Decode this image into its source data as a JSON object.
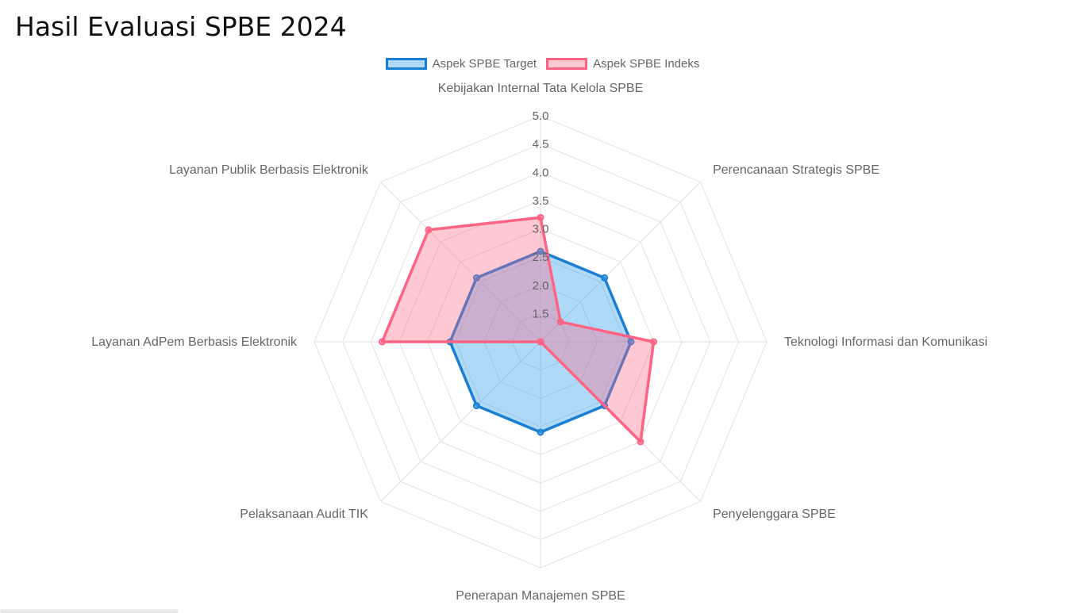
{
  "page": {
    "title": "Hasil Evaluasi SPBE 2024"
  },
  "colors": {
    "target_stroke": "#1a7fd4",
    "target_fill": "rgba(54,162,235,0.40)",
    "indeks_stroke": "#ff6384",
    "indeks_fill": "rgba(255,99,132,0.35)",
    "grid": "#e2e2e2",
    "label": "#666666"
  },
  "chart_data": {
    "type": "radar",
    "title": "Hasil Evaluasi SPBE 2024",
    "legend_position": "top",
    "grid": true,
    "r_range": [
      1.0,
      5.0
    ],
    "ticks": [
      "1.5",
      "2.0",
      "2.5",
      "3.0",
      "3.5",
      "4.0",
      "4.5",
      "5.0"
    ],
    "categories": [
      "Kebijakan Internal Tata Kelola SPBE",
      "Perencanaan Strategis SPBE",
      "Teknologi Informasi dan Komunikasi",
      "Penyelenggara SPBE",
      "Penerapan Manajemen SPBE",
      "Pelaksanaan Audit TIK",
      "Layanan AdPem Berbasis Elektronik",
      "Layanan Publik Berbasis Elektronik"
    ],
    "series": [
      {
        "name": "Aspek SPBE Target",
        "values": [
          2.6,
          2.6,
          2.6,
          2.6,
          2.6,
          2.6,
          2.6,
          2.6
        ]
      },
      {
        "name": "Aspek SPBE Indeks",
        "values": [
          3.2,
          1.5,
          3.0,
          3.5,
          1.0,
          1.0,
          3.8,
          3.8
        ]
      }
    ]
  }
}
